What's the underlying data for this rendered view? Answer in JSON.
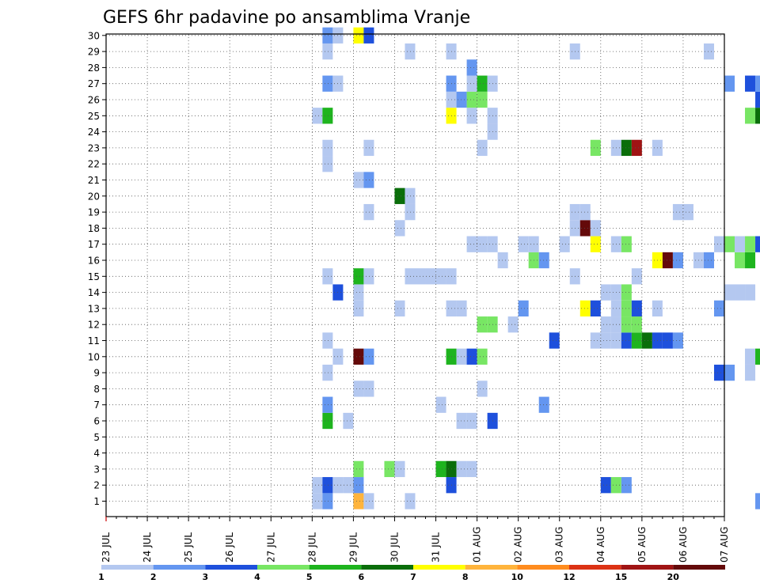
{
  "chart_data": {
    "type": "heatmap",
    "title": "GEFS 6hr padavine po ansamblima Vranje",
    "xlabel": "",
    "ylabel": "",
    "x_tick_labels": [
      "23 JUL",
      "24 JUL",
      "25 JUL",
      "26 JUL",
      "27 JUL",
      "28 JUL",
      "29 JUL",
      "30 JUL",
      "31 JUL",
      "01 AUG",
      "02 AUG",
      "03 AUG",
      "04 AUG",
      "05 AUG",
      "06 AUG",
      "07 AUG"
    ],
    "x_time_step": "6hr",
    "xlim": [
      "23 JUL",
      "07 AUG"
    ],
    "ylim": [
      0,
      30
    ],
    "y_tick_labels": [
      "1",
      "2",
      "3",
      "4",
      "5",
      "6",
      "7",
      "8",
      "9",
      "10",
      "11",
      "12",
      "13",
      "14",
      "15",
      "16",
      "17",
      "18",
      "19",
      "20",
      "21",
      "22",
      "23",
      "24",
      "25",
      "26",
      "27",
      "28",
      "29",
      "30"
    ],
    "grid": true,
    "colorbar": {
      "labels": [
        "1",
        "2",
        "3",
        "4",
        "5",
        "6",
        "7",
        "8",
        "10",
        "12",
        "15",
        "20"
      ],
      "colors": [
        "#b4c8f0",
        "#6496f0",
        "#1e50dc",
        "#78e664",
        "#1eb41e",
        "#0a6e0a",
        "#ffff00",
        "#ffb43c",
        "#ff8c1e",
        "#dc3214",
        "#a01414",
        "#640a0a"
      ]
    },
    "cells": [
      {
        "t": 20,
        "m": 1,
        "v": 1
      },
      {
        "t": 20,
        "m": 2,
        "v": 1
      },
      {
        "t": 20,
        "m": 25,
        "v": 1
      },
      {
        "t": 21,
        "m": 1,
        "v": 2
      },
      {
        "t": 21,
        "m": 2,
        "v": 3
      },
      {
        "t": 21,
        "m": 6,
        "v": 5
      },
      {
        "t": 21,
        "m": 7,
        "v": 2
      },
      {
        "t": 21,
        "m": 9,
        "v": 1
      },
      {
        "t": 21,
        "m": 11,
        "v": 1
      },
      {
        "t": 21,
        "m": 15,
        "v": 1
      },
      {
        "t": 21,
        "m": 22,
        "v": 1
      },
      {
        "t": 21,
        "m": 23,
        "v": 1
      },
      {
        "t": 21,
        "m": 25,
        "v": 5
      },
      {
        "t": 21,
        "m": 27,
        "v": 2
      },
      {
        "t": 21,
        "m": 29,
        "v": 1
      },
      {
        "t": 21,
        "m": 30,
        "v": 2
      },
      {
        "t": 22,
        "m": 2,
        "v": 1
      },
      {
        "t": 22,
        "m": 10,
        "v": 1
      },
      {
        "t": 22,
        "m": 14,
        "v": 3
      },
      {
        "t": 22,
        "m": 27,
        "v": 1
      },
      {
        "t": 22,
        "m": 30,
        "v": 1
      },
      {
        "t": 23,
        "m": 2,
        "v": 1
      },
      {
        "t": 23,
        "m": 6,
        "v": 1
      },
      {
        "t": 24,
        "m": 1,
        "v": 8
      },
      {
        "t": 24,
        "m": 2,
        "v": 2
      },
      {
        "t": 24,
        "m": 3,
        "v": 4
      },
      {
        "t": 24,
        "m": 8,
        "v": 1
      },
      {
        "t": 24,
        "m": 10,
        "v": 20
      },
      {
        "t": 24,
        "m": 13,
        "v": 1
      },
      {
        "t": 24,
        "m": 14,
        "v": 1
      },
      {
        "t": 24,
        "m": 15,
        "v": 5
      },
      {
        "t": 24,
        "m": 21,
        "v": 1
      },
      {
        "t": 24,
        "m": 30,
        "v": 7
      },
      {
        "t": 25,
        "m": 1,
        "v": 1
      },
      {
        "t": 25,
        "m": 8,
        "v": 1
      },
      {
        "t": 25,
        "m": 10,
        "v": 2
      },
      {
        "t": 25,
        "m": 15,
        "v": 1
      },
      {
        "t": 25,
        "m": 19,
        "v": 1
      },
      {
        "t": 25,
        "m": 21,
        "v": 2
      },
      {
        "t": 25,
        "m": 23,
        "v": 1
      },
      {
        "t": 25,
        "m": 30,
        "v": 3
      },
      {
        "t": 27,
        "m": 3,
        "v": 4
      },
      {
        "t": 28,
        "m": 3,
        "v": 1
      },
      {
        "t": 28,
        "m": 13,
        "v": 1
      },
      {
        "t": 28,
        "m": 18,
        "v": 1
      },
      {
        "t": 28,
        "m": 20,
        "v": 6
      },
      {
        "t": 29,
        "m": 1,
        "v": 1
      },
      {
        "t": 29,
        "m": 15,
        "v": 1
      },
      {
        "t": 29,
        "m": 19,
        "v": 1
      },
      {
        "t": 29,
        "m": 20,
        "v": 1
      },
      {
        "t": 29,
        "m": 29,
        "v": 1
      },
      {
        "t": 30,
        "m": 15,
        "v": 1
      },
      {
        "t": 31,
        "m": 15,
        "v": 1
      },
      {
        "t": 32,
        "m": 3,
        "v": 5
      },
      {
        "t": 32,
        "m": 7,
        "v": 1
      },
      {
        "t": 32,
        "m": 15,
        "v": 1
      },
      {
        "t": 33,
        "m": 2,
        "v": 3
      },
      {
        "t": 33,
        "m": 3,
        "v": 6
      },
      {
        "t": 33,
        "m": 10,
        "v": 5
      },
      {
        "t": 33,
        "m": 13,
        "v": 1
      },
      {
        "t": 33,
        "m": 15,
        "v": 1
      },
      {
        "t": 33,
        "m": 25,
        "v": 7
      },
      {
        "t": 33,
        "m": 26,
        "v": 1
      },
      {
        "t": 33,
        "m": 27,
        "v": 2
      },
      {
        "t": 33,
        "m": 29,
        "v": 1
      },
      {
        "t": 34,
        "m": 3,
        "v": 1
      },
      {
        "t": 34,
        "m": 6,
        "v": 1
      },
      {
        "t": 34,
        "m": 10,
        "v": 1
      },
      {
        "t": 34,
        "m": 13,
        "v": 1
      },
      {
        "t": 34,
        "m": 26,
        "v": 2
      },
      {
        "t": 35,
        "m": 3,
        "v": 1
      },
      {
        "t": 35,
        "m": 6,
        "v": 1
      },
      {
        "t": 35,
        "m": 10,
        "v": 3
      },
      {
        "t": 35,
        "m": 17,
        "v": 1
      },
      {
        "t": 35,
        "m": 25,
        "v": 1
      },
      {
        "t": 35,
        "m": 26,
        "v": 4
      },
      {
        "t": 35,
        "m": 27,
        "v": 1
      },
      {
        "t": 35,
        "m": 28,
        "v": 2
      },
      {
        "t": 36,
        "m": 8,
        "v": 1
      },
      {
        "t": 36,
        "m": 10,
        "v": 4
      },
      {
        "t": 36,
        "m": 12,
        "v": 4
      },
      {
        "t": 36,
        "m": 17,
        "v": 1
      },
      {
        "t": 36,
        "m": 23,
        "v": 1
      },
      {
        "t": 36,
        "m": 26,
        "v": 4
      },
      {
        "t": 36,
        "m": 27,
        "v": 5
      },
      {
        "t": 37,
        "m": 6,
        "v": 3
      },
      {
        "t": 37,
        "m": 12,
        "v": 4
      },
      {
        "t": 37,
        "m": 17,
        "v": 1
      },
      {
        "t": 37,
        "m": 24,
        "v": 1
      },
      {
        "t": 37,
        "m": 25,
        "v": 1
      },
      {
        "t": 37,
        "m": 27,
        "v": 1
      },
      {
        "t": 38,
        "m": 16,
        "v": 1
      },
      {
        "t": 39,
        "m": 12,
        "v": 1
      },
      {
        "t": 40,
        "m": 13,
        "v": 2
      },
      {
        "t": 40,
        "m": 17,
        "v": 1
      },
      {
        "t": 41,
        "m": 16,
        "v": 4
      },
      {
        "t": 41,
        "m": 17,
        "v": 1
      },
      {
        "t": 42,
        "m": 7,
        "v": 2
      },
      {
        "t": 42,
        "m": 16,
        "v": 2
      },
      {
        "t": 43,
        "m": 11,
        "v": 3
      },
      {
        "t": 44,
        "m": 17,
        "v": 1
      },
      {
        "t": 45,
        "m": 15,
        "v": 1
      },
      {
        "t": 45,
        "m": 18,
        "v": 1
      },
      {
        "t": 45,
        "m": 19,
        "v": 1
      },
      {
        "t": 45,
        "m": 29,
        "v": 1
      },
      {
        "t": 46,
        "m": 13,
        "v": 7
      },
      {
        "t": 46,
        "m": 18,
        "v": 20
      },
      {
        "t": 46,
        "m": 19,
        "v": 1
      },
      {
        "t": 47,
        "m": 11,
        "v": 1
      },
      {
        "t": 47,
        "m": 13,
        "v": 3
      },
      {
        "t": 47,
        "m": 17,
        "v": 7
      },
      {
        "t": 47,
        "m": 18,
        "v": 1
      },
      {
        "t": 47,
        "m": 23,
        "v": 4
      },
      {
        "t": 48,
        "m": 2,
        "v": 3
      },
      {
        "t": 48,
        "m": 11,
        "v": 1
      },
      {
        "t": 48,
        "m": 12,
        "v": 1
      },
      {
        "t": 48,
        "m": 14,
        "v": 1
      },
      {
        "t": 49,
        "m": 2,
        "v": 4
      },
      {
        "t": 49,
        "m": 11,
        "v": 1
      },
      {
        "t": 49,
        "m": 12,
        "v": 1
      },
      {
        "t": 49,
        "m": 13,
        "v": 1
      },
      {
        "t": 49,
        "m": 14,
        "v": 1
      },
      {
        "t": 49,
        "m": 17,
        "v": 1
      },
      {
        "t": 49,
        "m": 23,
        "v": 1
      },
      {
        "t": 50,
        "m": 2,
        "v": 2
      },
      {
        "t": 50,
        "m": 11,
        "v": 3
      },
      {
        "t": 50,
        "m": 12,
        "v": 4
      },
      {
        "t": 50,
        "m": 13,
        "v": 4
      },
      {
        "t": 50,
        "m": 14,
        "v": 4
      },
      {
        "t": 50,
        "m": 17,
        "v": 4
      },
      {
        "t": 50,
        "m": 23,
        "v": 6
      },
      {
        "t": 51,
        "m": 11,
        "v": 5
      },
      {
        "t": 51,
        "m": 12,
        "v": 4
      },
      {
        "t": 51,
        "m": 13,
        "v": 3
      },
      {
        "t": 51,
        "m": 15,
        "v": 1
      },
      {
        "t": 51,
        "m": 23,
        "v": 15
      },
      {
        "t": 52,
        "m": 11,
        "v": 6
      },
      {
        "t": 53,
        "m": 11,
        "v": 3
      },
      {
        "t": 53,
        "m": 13,
        "v": 1
      },
      {
        "t": 53,
        "m": 16,
        "v": 7
      },
      {
        "t": 53,
        "m": 23,
        "v": 1
      },
      {
        "t": 54,
        "m": 11,
        "v": 3
      },
      {
        "t": 54,
        "m": 16,
        "v": 20
      },
      {
        "t": 55,
        "m": 11,
        "v": 2
      },
      {
        "t": 55,
        "m": 16,
        "v": 2
      },
      {
        "t": 55,
        "m": 19,
        "v": 1
      },
      {
        "t": 56,
        "m": 19,
        "v": 1
      },
      {
        "t": 57,
        "m": 16,
        "v": 1
      },
      {
        "t": 58,
        "m": 16,
        "v": 2
      },
      {
        "t": 58,
        "m": 29,
        "v": 1
      },
      {
        "t": 59,
        "m": 9,
        "v": 3
      },
      {
        "t": 59,
        "m": 13,
        "v": 2
      },
      {
        "t": 59,
        "m": 17,
        "v": 1
      },
      {
        "t": 60,
        "m": 9,
        "v": 2
      },
      {
        "t": 60,
        "m": 14,
        "v": 1
      },
      {
        "t": 60,
        "m": 17,
        "v": 4
      },
      {
        "t": 60,
        "m": 27,
        "v": 2
      },
      {
        "t": 61,
        "m": 14,
        "v": 1
      },
      {
        "t": 61,
        "m": 16,
        "v": 4
      },
      {
        "t": 61,
        "m": 17,
        "v": 1
      },
      {
        "t": 62,
        "m": 9,
        "v": 1
      },
      {
        "t": 62,
        "m": 10,
        "v": 1
      },
      {
        "t": 62,
        "m": 14,
        "v": 1
      },
      {
        "t": 62,
        "m": 16,
        "v": 5
      },
      {
        "t": 62,
        "m": 17,
        "v": 4
      },
      {
        "t": 62,
        "m": 25,
        "v": 4
      },
      {
        "t": 62,
        "m": 27,
        "v": 3
      },
      {
        "t": 63,
        "m": 1,
        "v": 2
      },
      {
        "t": 63,
        "m": 10,
        "v": 5
      },
      {
        "t": 63,
        "m": 17,
        "v": 3
      },
      {
        "t": 63,
        "m": 25,
        "v": 6
      },
      {
        "t": 63,
        "m": 26,
        "v": 3
      },
      {
        "t": 63,
        "m": 27,
        "v": 2
      }
    ]
  }
}
